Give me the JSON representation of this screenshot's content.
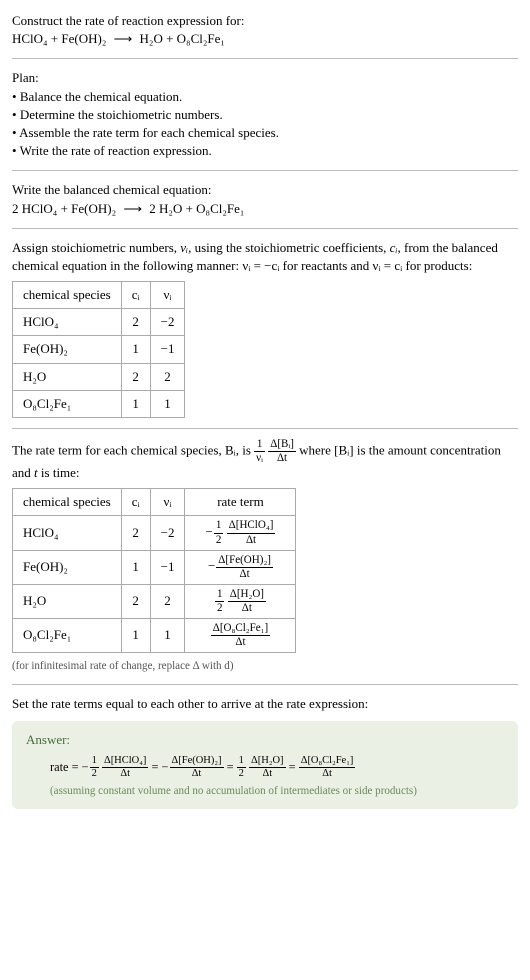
{
  "prompt": {
    "line1": "Construct the rate of reaction expression for:",
    "eq_reactants": "HClO₄ + Fe(OH)₂",
    "eq_arrow": "⟶",
    "eq_products": "H₂O + O₈Cl₂Fe₁"
  },
  "plan": {
    "title": "Plan:",
    "items": [
      "Balance the chemical equation.",
      "Determine the stoichiometric numbers.",
      "Assemble the rate term for each chemical species.",
      "Write the rate of reaction expression."
    ]
  },
  "balanced": {
    "title": "Write the balanced chemical equation:",
    "eq_reactants": "2 HClO₄ + Fe(OH)₂",
    "eq_arrow": "⟶",
    "eq_products": "2 H₂O + O₈Cl₂Fe₁"
  },
  "assign": {
    "text_a": "Assign stoichiometric numbers, ",
    "nu_i": "νᵢ",
    "text_b": ", using the stoichiometric coefficients, ",
    "c_i": "cᵢ",
    "text_c": ", from the balanced chemical equation in the following manner: ",
    "rel_react": "νᵢ = −cᵢ",
    "text_d": " for reactants and ",
    "rel_prod": "νᵢ = cᵢ",
    "text_e": " for products:"
  },
  "stoich_table": {
    "headers": [
      "chemical species",
      "cᵢ",
      "νᵢ"
    ],
    "rows": [
      [
        "HClO₄",
        "2",
        "−2"
      ],
      [
        "Fe(OH)₂",
        "1",
        "−1"
      ],
      [
        "H₂O",
        "2",
        "2"
      ],
      [
        "O₈Cl₂Fe₁",
        "1",
        "1"
      ]
    ]
  },
  "rate_term_intro": {
    "a": "The rate term for each chemical species, Bᵢ, is ",
    "frac1_num": "1",
    "frac1_den": "νᵢ",
    "frac2_num": "Δ[Bᵢ]",
    "frac2_den": "Δt",
    "b": " where [Bᵢ] is the amount concentration and ",
    "t": "t",
    "c": " is time:"
  },
  "rate_table": {
    "headers": [
      "chemical species",
      "cᵢ",
      "νᵢ",
      "rate term"
    ],
    "rows": [
      {
        "sp": "HClO₄",
        "c": "2",
        "nu": "−2",
        "sign": "−",
        "coef_num": "1",
        "coef_den": "2",
        "d_num": "Δ[HClO₄]",
        "d_den": "Δt"
      },
      {
        "sp": "Fe(OH)₂",
        "c": "1",
        "nu": "−1",
        "sign": "−",
        "coef_num": "",
        "coef_den": "",
        "d_num": "Δ[Fe(OH)₂]",
        "d_den": "Δt"
      },
      {
        "sp": "H₂O",
        "c": "2",
        "nu": "2",
        "sign": "",
        "coef_num": "1",
        "coef_den": "2",
        "d_num": "Δ[H₂O]",
        "d_den": "Δt"
      },
      {
        "sp": "O₈Cl₂Fe₁",
        "c": "1",
        "nu": "1",
        "sign": "",
        "coef_num": "",
        "coef_den": "",
        "d_num": "Δ[O₈Cl₂Fe₁]",
        "d_den": "Δt"
      }
    ],
    "note": "(for infinitesimal rate of change, replace Δ with d)"
  },
  "set_equal": "Set the rate terms equal to each other to arrive at the rate expression:",
  "answer": {
    "label": "Answer:",
    "rate_eq_lead": "rate = ",
    "terms": [
      {
        "sign": "−",
        "coef_num": "1",
        "coef_den": "2",
        "d_num": "Δ[HClO₄]",
        "d_den": "Δt"
      },
      {
        "sign": "−",
        "coef_num": "",
        "coef_den": "",
        "d_num": "Δ[Fe(OH)₂]",
        "d_den": "Δt"
      },
      {
        "sign": "",
        "coef_num": "1",
        "coef_den": "2",
        "d_num": "Δ[H₂O]",
        "d_den": "Δt"
      },
      {
        "sign": "",
        "coef_num": "",
        "coef_den": "",
        "d_num": "Δ[O₈Cl₂Fe₁]",
        "d_den": "Δt"
      }
    ],
    "eq_sep": " = ",
    "note": "(assuming constant volume and no accumulation of intermediates or side products)"
  },
  "colors": {
    "divider": "#bbbbbb",
    "table_border": "#aaaaaa",
    "answer_bg": "#eaf1e4",
    "answer_label": "#4a6b3a",
    "note_text": "#6a8a5a"
  }
}
